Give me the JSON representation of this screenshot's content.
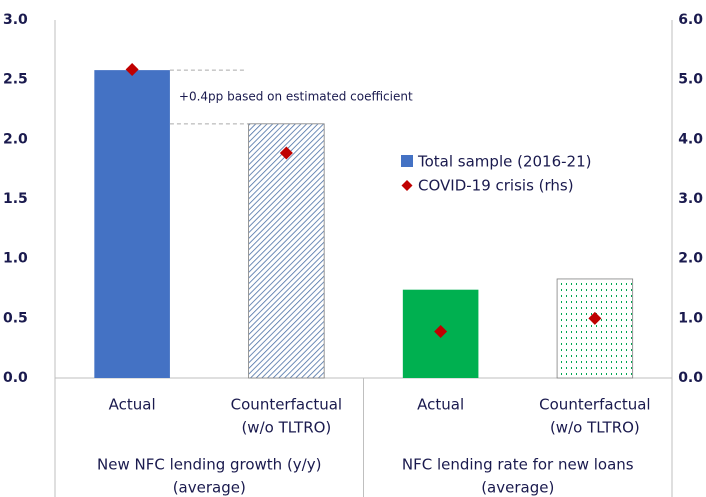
{
  "chart_data": {
    "type": "bar",
    "categories": [
      [
        "Actual"
      ],
      [
        "Counterfactual",
        "(w/o TLTRO)"
      ],
      [
        "Actual"
      ],
      [
        "Counterfactual",
        "(w/o TLTRO)"
      ]
    ],
    "groups": [
      [
        "New NFC lending growth (y/y)",
        "(average)"
      ],
      [
        "NFC lending rate for new loans",
        "(average)"
      ]
    ],
    "bar_colors": [
      "#4472c4",
      "#4472c4",
      "#00b050",
      "#00b050"
    ],
    "bar_styles": [
      "solid",
      "hatched",
      "solid",
      "dotted"
    ],
    "series": [
      {
        "name": "Total sample (2016-21)",
        "color": "#4472c4",
        "values": [
          2.58,
          2.13,
          0.74,
          0.83
        ]
      },
      {
        "name": "COVID-19 crisis (rhs)",
        "color": "#c00000",
        "axis": "y2",
        "values": [
          5.17,
          3.77,
          0.78,
          1.0
        ]
      }
    ],
    "annotation": "+0.4pp based on estimated coefficient",
    "ylim": [
      0,
      3
    ],
    "yticks": [
      {
        "value": 0,
        "label": "0.0"
      },
      0.5,
      {
        "value": 1,
        "label": "1.0"
      },
      1.5,
      {
        "value": 2,
        "label": "2.0"
      },
      2.5,
      {
        "value": 3,
        "label": "3.0"
      }
    ],
    "y2lim": [
      0,
      6
    ],
    "y2ticks": [
      {
        "value": 0,
        "label": "0.0"
      },
      {
        "value": 1,
        "label": "1.0"
      },
      {
        "value": 2,
        "label": "2.0"
      },
      {
        "value": 3,
        "label": "3.0"
      },
      {
        "value": 4,
        "label": "4.0"
      },
      {
        "value": 5,
        "label": "5.0"
      },
      {
        "value": 6,
        "label": "6.0"
      }
    ]
  }
}
